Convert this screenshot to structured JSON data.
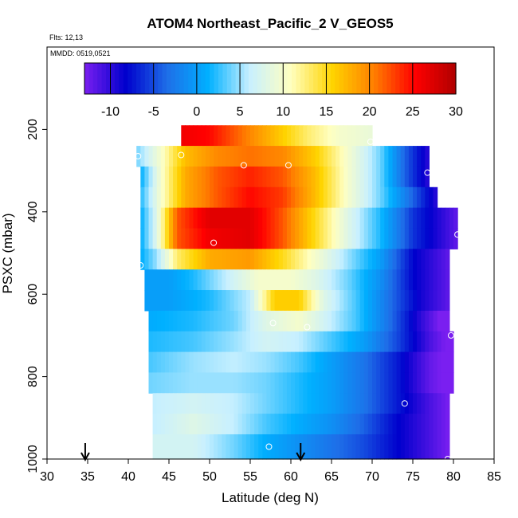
{
  "chart_data": {
    "type": "heatmap",
    "title": "ATOM4 Northeast_Pacific_2 V_GEOS5",
    "flights_text": "Flts: 12,13",
    "mmdd_text": "MMDD: 0519,0521",
    "xlabel": "Latitude (deg N)",
    "ylabel": "PSXC (mbar)",
    "xlim": [
      30,
      85
    ],
    "ylim": [
      1000,
      0
    ],
    "xticks": [
      "30",
      "35",
      "40",
      "45",
      "50",
      "55",
      "60",
      "65",
      "70",
      "75",
      "80",
      "85"
    ],
    "yticks": [
      "200",
      "400",
      "600",
      "800",
      "1000"
    ],
    "colorbar": {
      "range": [
        -13,
        30
      ],
      "ticks": [
        "-10",
        "-5",
        "0",
        "5",
        "10",
        "15",
        "20",
        "25",
        "30"
      ],
      "colors": [
        "#7a1ff0",
        "#0000cd",
        "#1e6ee8",
        "#00b0ff",
        "#c8f0ff",
        "#ffffc0",
        "#ffd400",
        "#ff8000",
        "#ff0000",
        "#b00000"
      ]
    },
    "layers": [
      {
        "p": 215,
        "xmin": 46.5,
        "xmax": 70,
        "values": [
          [
            46.5,
            26
          ],
          [
            50,
            25
          ],
          [
            54,
            21
          ],
          [
            58,
            17
          ],
          [
            62,
            13
          ],
          [
            66,
            10
          ],
          [
            70,
            9
          ]
        ]
      },
      {
        "p": 265,
        "xmin": 41,
        "xmax": 77,
        "values": [
          [
            41,
            4
          ],
          [
            44,
            10
          ],
          [
            47,
            17
          ],
          [
            51,
            20
          ],
          [
            55,
            21
          ],
          [
            59,
            20
          ],
          [
            63,
            16
          ],
          [
            67,
            10
          ],
          [
            71,
            4
          ],
          [
            74,
            -4
          ],
          [
            77,
            -10
          ]
        ]
      },
      {
        "p": 315,
        "xmin": 41.5,
        "xmax": 77,
        "values": [
          [
            41.5,
            1
          ],
          [
            44,
            10
          ],
          [
            47,
            18
          ],
          [
            51,
            22
          ],
          [
            55,
            24
          ],
          [
            59,
            22
          ],
          [
            63,
            17
          ],
          [
            67,
            10
          ],
          [
            71,
            4
          ],
          [
            74,
            -4
          ],
          [
            77,
            -10
          ]
        ]
      },
      {
        "p": 365,
        "xmin": 41.5,
        "xmax": 78,
        "values": [
          [
            41.5,
            2
          ],
          [
            44,
            10
          ],
          [
            47,
            18
          ],
          [
            51,
            22
          ],
          [
            55,
            25
          ],
          [
            59,
            23
          ],
          [
            63,
            17
          ],
          [
            67,
            10
          ],
          [
            71,
            4
          ],
          [
            75,
            -4
          ],
          [
            78,
            -10
          ]
        ]
      },
      {
        "p": 415,
        "xmin": 41.5,
        "xmax": 80.5,
        "values": [
          [
            41.5,
            1
          ],
          [
            43.5,
            8
          ],
          [
            46,
            22
          ],
          [
            50,
            27
          ],
          [
            55,
            27
          ],
          [
            59,
            22
          ],
          [
            63,
            15
          ],
          [
            67,
            8
          ],
          [
            71,
            2
          ],
          [
            75,
            -6
          ],
          [
            80.5,
            -12
          ]
        ]
      },
      {
        "p": 465,
        "xmin": 41.5,
        "xmax": 80.5,
        "values": [
          [
            41.5,
            1
          ],
          [
            43.5,
            8
          ],
          [
            46,
            22
          ],
          [
            50,
            26
          ],
          [
            55,
            27
          ],
          [
            59,
            22
          ],
          [
            63,
            15
          ],
          [
            67,
            8
          ],
          [
            71,
            2
          ],
          [
            75,
            -6
          ],
          [
            80.5,
            -12
          ]
        ]
      },
      {
        "p": 515,
        "xmin": 41.5,
        "xmax": 79.5,
        "values": [
          [
            41.5,
            1
          ],
          [
            43.5,
            5
          ],
          [
            46,
            13
          ],
          [
            50,
            18
          ],
          [
            55,
            19
          ],
          [
            59,
            15
          ],
          [
            63,
            10
          ],
          [
            67,
            5
          ],
          [
            71,
            0
          ],
          [
            75,
            -8
          ],
          [
            79.5,
            -12
          ]
        ]
      },
      {
        "p": 565,
        "xmin": 42,
        "xmax": 79.5,
        "values": [
          [
            42,
            0
          ],
          [
            45,
            0
          ],
          [
            48,
            2
          ],
          [
            52,
            6
          ],
          [
            56,
            10
          ],
          [
            60,
            10
          ],
          [
            63,
            8
          ],
          [
            67,
            4
          ],
          [
            71,
            -1
          ],
          [
            75,
            -8
          ],
          [
            79.5,
            -12
          ]
        ]
      },
      {
        "p": 615,
        "xmin": 42,
        "xmax": 79.5,
        "values": [
          [
            42,
            0
          ],
          [
            45,
            0
          ],
          [
            50,
            2
          ],
          [
            55,
            6
          ],
          [
            58,
            16
          ],
          [
            61,
            16
          ],
          [
            64,
            8
          ],
          [
            68,
            3
          ],
          [
            72,
            -3
          ],
          [
            76,
            -9
          ],
          [
            79.5,
            -12
          ]
        ]
      },
      {
        "p": 665,
        "xmin": 42.5,
        "xmax": 79.5,
        "values": [
          [
            42.5,
            1
          ],
          [
            48,
            2
          ],
          [
            53,
            4
          ],
          [
            57,
            8
          ],
          [
            61,
            10
          ],
          [
            64,
            7
          ],
          [
            68,
            3
          ],
          [
            72,
            -3
          ],
          [
            76,
            -10
          ],
          [
            79,
            -14
          ]
        ]
      },
      {
        "p": 715,
        "xmin": 42.5,
        "xmax": 80,
        "values": [
          [
            42.5,
            2
          ],
          [
            48,
            3
          ],
          [
            53,
            5
          ],
          [
            57,
            7
          ],
          [
            61,
            6
          ],
          [
            65,
            3
          ],
          [
            69,
            0
          ],
          [
            73,
            -5
          ],
          [
            77,
            -11
          ],
          [
            80,
            -14
          ]
        ]
      },
      {
        "p": 765,
        "xmin": 42.5,
        "xmax": 80,
        "values": [
          [
            42.5,
            3
          ],
          [
            48,
            5
          ],
          [
            53,
            6
          ],
          [
            57,
            5
          ],
          [
            61,
            3
          ],
          [
            65,
            0
          ],
          [
            69,
            -3
          ],
          [
            73,
            -7
          ],
          [
            77,
            -12
          ],
          [
            80,
            -14
          ]
        ]
      },
      {
        "p": 815,
        "xmin": 42.5,
        "xmax": 80,
        "values": [
          [
            42.5,
            4
          ],
          [
            48,
            5
          ],
          [
            53,
            5
          ],
          [
            57,
            4
          ],
          [
            61,
            2
          ],
          [
            65,
            0
          ],
          [
            69,
            -3
          ],
          [
            73,
            -7
          ],
          [
            77,
            -12
          ],
          [
            80,
            -14
          ]
        ]
      },
      {
        "p": 865,
        "xmin": 43,
        "xmax": 79.5,
        "values": [
          [
            43,
            6
          ],
          [
            48,
            7
          ],
          [
            53,
            6
          ],
          [
            57,
            4
          ],
          [
            61,
            2
          ],
          [
            65,
            0
          ],
          [
            69,
            -3
          ],
          [
            73,
            -7
          ],
          [
            77,
            -11
          ],
          [
            79.5,
            -13
          ]
        ]
      },
      {
        "p": 915,
        "xmin": 43,
        "xmax": 79.5,
        "values": [
          [
            43,
            6
          ],
          [
            48,
            8
          ],
          [
            53,
            6
          ],
          [
            57,
            3
          ],
          [
            61,
            1
          ],
          [
            65,
            -1
          ],
          [
            69,
            -4
          ],
          [
            73,
            -8
          ],
          [
            77,
            -11
          ],
          [
            79.5,
            -13
          ]
        ]
      },
      {
        "p": 965,
        "xmin": 43,
        "xmax": 79.5,
        "values": [
          [
            43,
            7
          ],
          [
            48,
            7
          ],
          [
            53,
            4
          ],
          [
            57,
            1
          ],
          [
            61,
            -1
          ],
          [
            65,
            -3
          ],
          [
            69,
            -5
          ],
          [
            73,
            -8
          ],
          [
            77,
            -11
          ],
          [
            79.5,
            -13
          ]
        ]
      }
    ],
    "sample_points": [
      {
        "lat": 46.5,
        "p": 262
      },
      {
        "lat": 41.2,
        "p": 265
      },
      {
        "lat": 54.2,
        "p": 287
      },
      {
        "lat": 59.7,
        "p": 287
      },
      {
        "lat": 69.8,
        "p": 230
      },
      {
        "lat": 76.8,
        "p": 305
      },
      {
        "lat": 50.5,
        "p": 475
      },
      {
        "lat": 41.5,
        "p": 530
      },
      {
        "lat": 80.5,
        "p": 455
      },
      {
        "lat": 57.8,
        "p": 670
      },
      {
        "lat": 62,
        "p": 680
      },
      {
        "lat": 79.7,
        "p": 700
      },
      {
        "lat": 74,
        "p": 865
      },
      {
        "lat": 57.3,
        "p": 970
      },
      {
        "lat": 79.3,
        "p": 1000
      }
    ],
    "flight_marker_latitudes": [
      34.7,
      61.2
    ]
  }
}
